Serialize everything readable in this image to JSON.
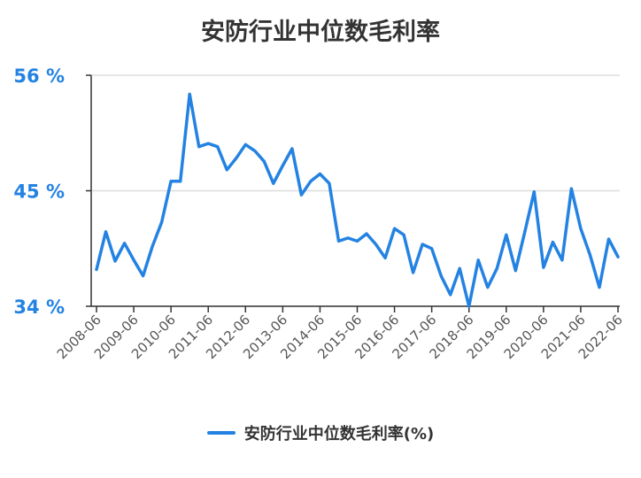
{
  "chart_data": {
    "type": "line",
    "title": "安防行业中位数毛利率",
    "xlabel": "",
    "ylabel": "",
    "ylim": [
      34,
      56
    ],
    "y_ticks": [
      34,
      45,
      56
    ],
    "y_tick_labels": [
      "34 %",
      "45 %",
      "56 %"
    ],
    "x_tick_labels": [
      "2008-06",
      "2009-06",
      "2010-06",
      "2011-06",
      "2012-06",
      "2013-06",
      "2014-06",
      "2015-06",
      "2016-06",
      "2017-06",
      "2018-06",
      "2019-06",
      "2020-06",
      "2021-06",
      "2022-06"
    ],
    "grid": "horizontal",
    "legend_position": "bottom",
    "series": [
      {
        "name": "安防行业中位数毛利率(%)",
        "color": "#2382e2",
        "values": [
          37.5,
          41.1,
          38.3,
          40.0,
          38.4,
          36.9,
          39.7,
          42.0,
          45.9,
          45.9,
          54.2,
          49.2,
          49.5,
          49.2,
          47.0,
          48.1,
          49.4,
          48.8,
          47.8,
          45.7,
          47.4,
          49.0,
          44.6,
          45.9,
          46.6,
          45.7,
          40.2,
          40.5,
          40.2,
          40.9,
          39.9,
          38.6,
          41.4,
          40.8,
          37.2,
          39.9,
          39.5,
          36.9,
          35.1,
          37.6,
          34.0,
          38.4,
          35.8,
          37.6,
          40.8,
          37.4,
          41.1,
          44.9,
          37.7,
          40.1,
          38.4,
          45.2,
          41.4,
          38.9,
          35.8,
          40.4,
          38.7
        ],
        "tick_every": 4
      }
    ]
  },
  "legend": {
    "label": "安防行业中位数毛利率(%)"
  }
}
